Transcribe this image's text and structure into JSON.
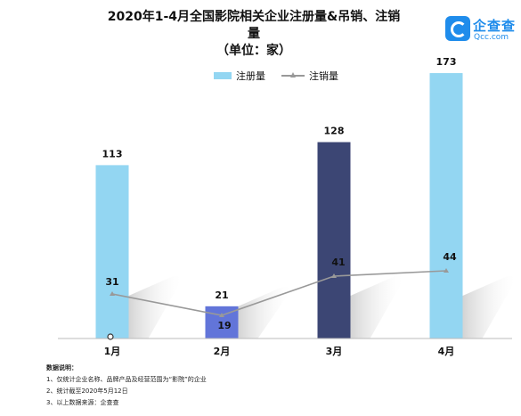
{
  "header": {
    "title_line1": "2020年1-4月全国影院相关企业注册量&吊销、注销量",
    "title_line2": "（单位：家）"
  },
  "logo": {
    "icon": "qcc-logo-icon",
    "name": "企查查",
    "domain": "Qcc.com",
    "color": "#1f8ceb"
  },
  "legend": {
    "bar_label": "注册量",
    "line_label": "注销量"
  },
  "chart_data": {
    "type": "bar",
    "categories": [
      "1月",
      "2月",
      "3月",
      "4月"
    ],
    "series": [
      {
        "name": "注册量",
        "kind": "bar",
        "values": [
          113,
          21,
          128,
          173
        ],
        "colors": [
          "#93d6f2",
          "#6275d9",
          "#3c4674",
          "#93d6f2"
        ]
      },
      {
        "name": "注销量",
        "kind": "line",
        "values": [
          31,
          19,
          41,
          44
        ],
        "color": "#999999"
      }
    ],
    "ylim": [
      0,
      180
    ],
    "grid": false,
    "legend_position": "top-center",
    "xlabel": "",
    "ylabel": ""
  },
  "notes": {
    "heading": "数据说明：",
    "items": [
      "1、仅统计企业名称、品牌产品及经营范围为“影院”的企业",
      "2、统计截至2020年5月12日",
      "3、以上数据来源：企查查"
    ]
  }
}
